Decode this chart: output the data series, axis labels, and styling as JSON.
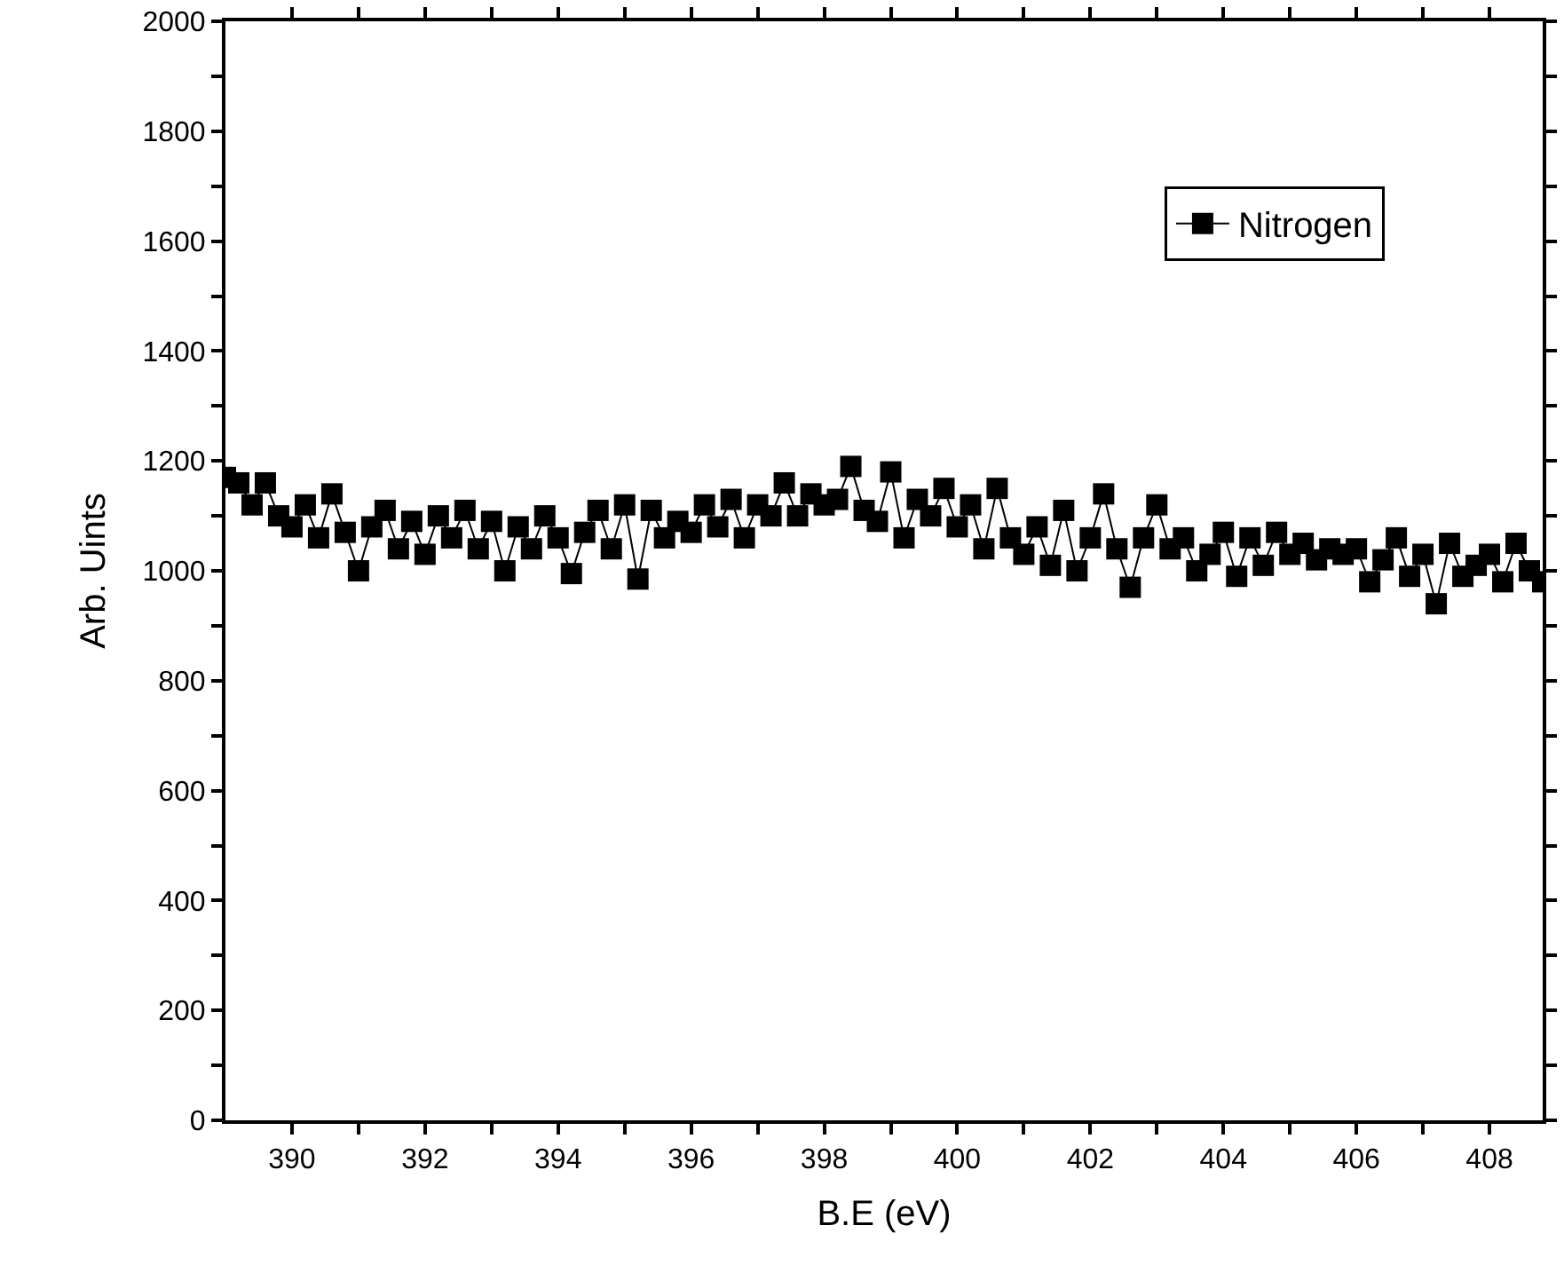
{
  "chart_data": {
    "type": "line",
    "xlabel": "B.E (eV)",
    "ylabel": "Arb. Uints",
    "x": [
      389.0,
      389.2,
      389.4,
      389.6,
      389.8,
      390.0,
      390.2,
      390.4,
      390.6,
      390.8,
      391.0,
      391.2,
      391.4,
      391.6,
      391.8,
      392.0,
      392.2,
      392.4,
      392.6,
      392.8,
      393.0,
      393.2,
      393.4,
      393.6,
      393.8,
      394.0,
      394.2,
      394.4,
      394.6,
      394.8,
      395.0,
      395.2,
      395.4,
      395.6,
      395.8,
      396.0,
      396.2,
      396.4,
      396.6,
      396.8,
      397.0,
      397.2,
      397.4,
      397.6,
      397.8,
      398.0,
      398.2,
      398.4,
      398.6,
      398.8,
      399.0,
      399.2,
      399.4,
      399.6,
      399.8,
      400.0,
      400.2,
      400.4,
      400.6,
      400.8,
      401.0,
      401.2,
      401.4,
      401.6,
      401.8,
      402.0,
      402.2,
      402.4,
      402.6,
      402.8,
      403.0,
      403.2,
      403.4,
      403.6,
      403.8,
      404.0,
      404.2,
      404.4,
      404.6,
      404.8,
      405.0,
      405.2,
      405.4,
      405.6,
      405.8,
      406.0,
      406.2,
      406.4,
      406.6,
      406.8,
      407.0,
      407.2,
      407.4,
      407.6,
      407.8,
      408.0,
      408.2,
      408.4,
      408.6,
      408.8
    ],
    "series": [
      {
        "name": "Nitrogen",
        "color": "#000000",
        "values": [
          1170,
          1160,
          1120,
          1160,
          1100,
          1080,
          1120,
          1060,
          1140,
          1070,
          1000,
          1080,
          1110,
          1040,
          1090,
          1030,
          1100,
          1060,
          1110,
          1040,
          1090,
          1000,
          1080,
          1040,
          1100,
          1060,
          995,
          1070,
          1110,
          1040,
          1120,
          985,
          1110,
          1060,
          1090,
          1070,
          1120,
          1080,
          1130,
          1060,
          1120,
          1100,
          1160,
          1100,
          1140,
          1120,
          1130,
          1190,
          1110,
          1090,
          1180,
          1060,
          1130,
          1100,
          1150,
          1080,
          1120,
          1040,
          1150,
          1060,
          1030,
          1080,
          1010,
          1110,
          1000,
          1060,
          1140,
          1040,
          970,
          1060,
          1120,
          1040,
          1060,
          1000,
          1030,
          1070,
          990,
          1060,
          1010,
          1070,
          1030,
          1050,
          1020,
          1040,
          1030,
          1040,
          980,
          1020,
          1060,
          990,
          1030,
          940,
          1050,
          990,
          1010,
          1030,
          980,
          1050,
          1000,
          980
        ]
      }
    ],
    "xlim": [
      389,
      408.8
    ],
    "xticks": [
      390,
      {
        "value": 391,
        "label": null
      },
      392,
      {
        "value": 393,
        "label": null
      },
      394,
      {
        "value": 395,
        "label": null
      },
      396,
      {
        "value": 397,
        "label": null
      },
      398,
      {
        "value": 399,
        "label": null
      },
      400,
      {
        "value": 401,
        "label": null
      },
      402,
      {
        "value": 403,
        "label": null
      },
      404,
      {
        "value": 405,
        "label": null
      },
      406,
      {
        "value": 407,
        "label": null
      },
      408
    ],
    "ylim": [
      0,
      2000
    ],
    "yticks": [
      0,
      {
        "value": 100,
        "label": null
      },
      200,
      {
        "value": 300,
        "label": null
      },
      400,
      {
        "value": 500,
        "label": null
      },
      600,
      {
        "value": 700,
        "label": null
      },
      800,
      {
        "value": 900,
        "label": null
      },
      1000,
      {
        "value": 1100,
        "label": null
      },
      1200,
      {
        "value": 1300,
        "label": null
      },
      1400,
      {
        "value": 1500,
        "label": null
      },
      1600,
      {
        "value": 1700,
        "label": null
      },
      1800,
      {
        "value": 1900,
        "label": null
      },
      2000
    ],
    "marker": "square",
    "line_style": "solid",
    "legend": "top right"
  }
}
